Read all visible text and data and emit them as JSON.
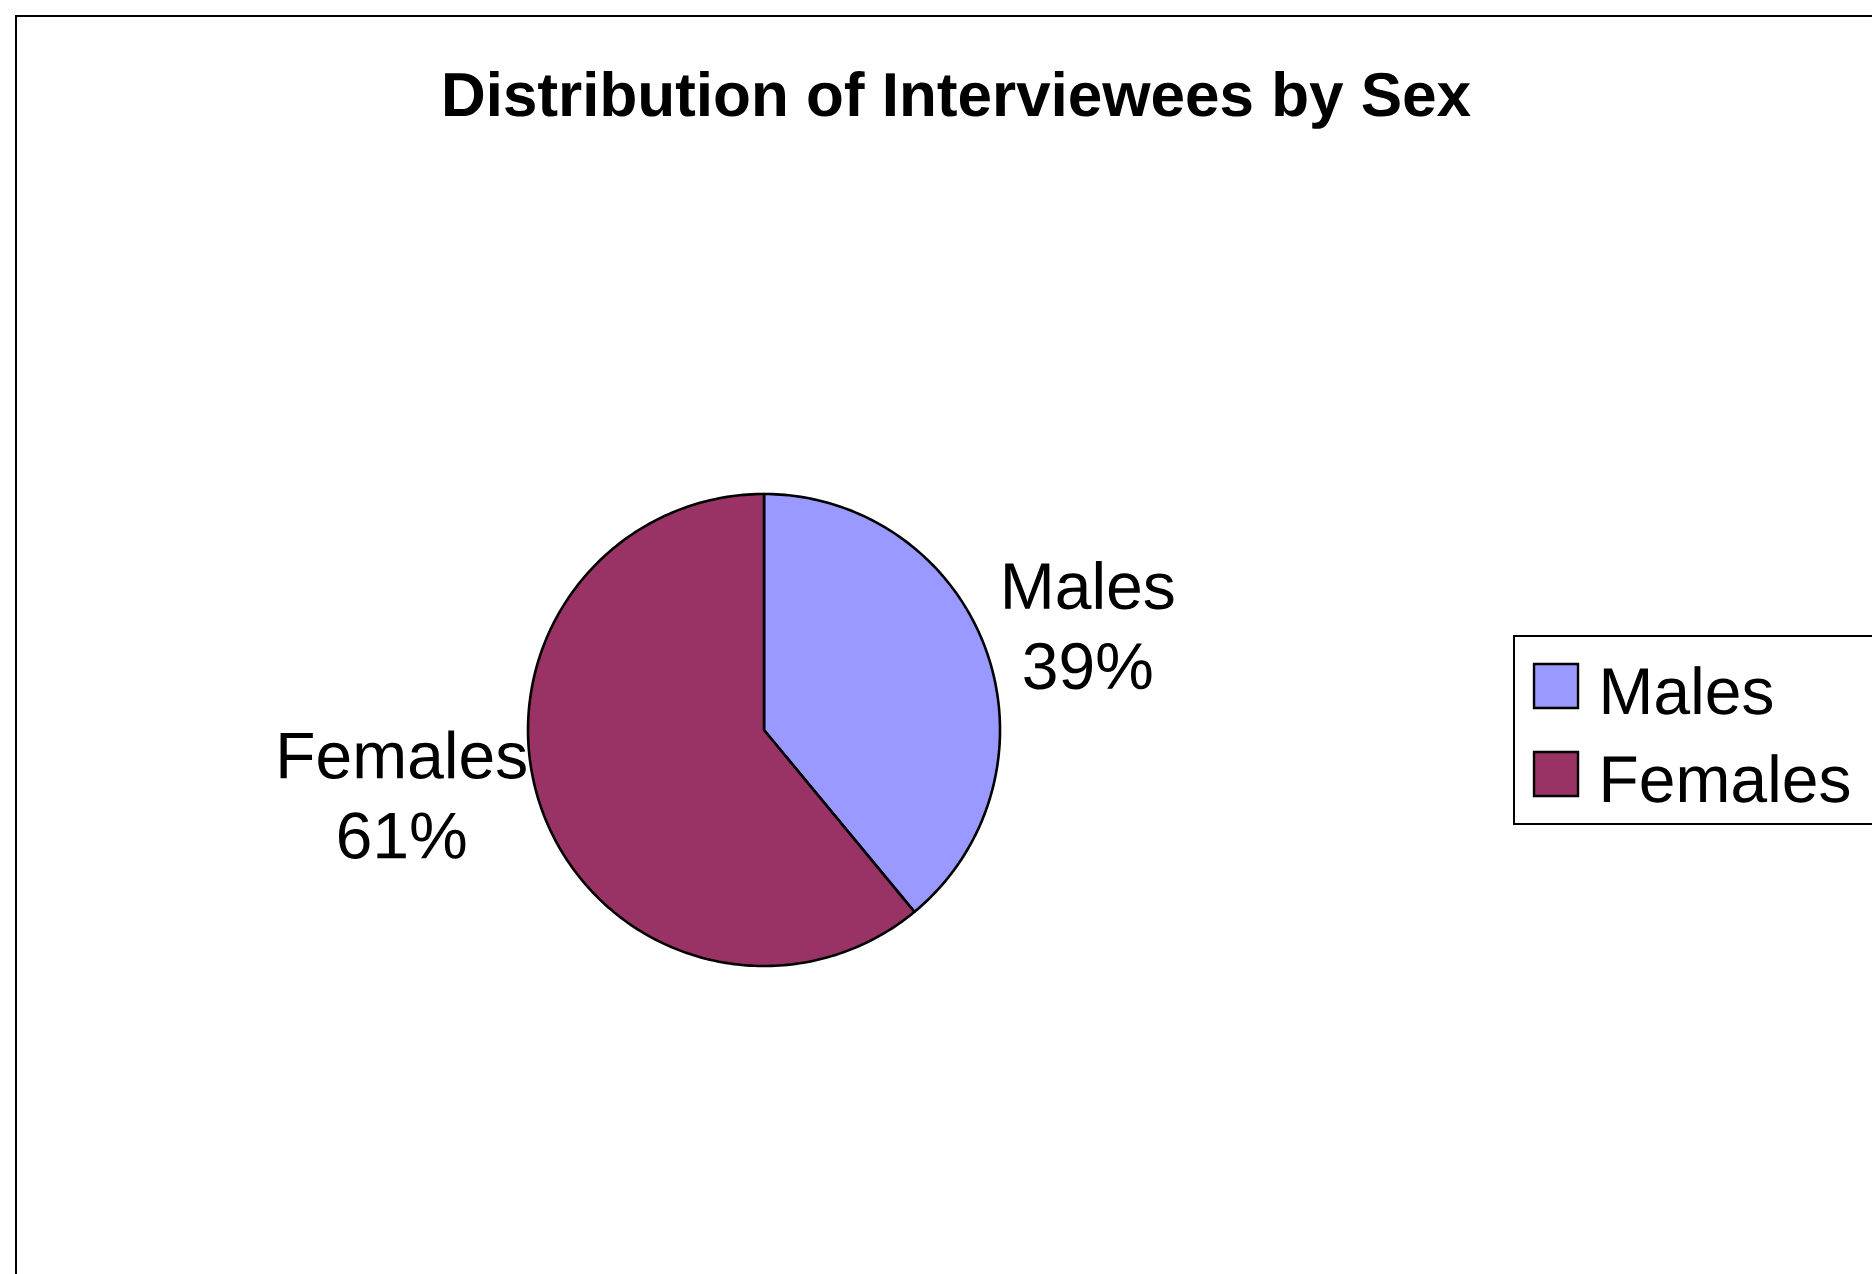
{
  "chart_data": {
    "type": "pie",
    "title": "Distribution of Interviewees by Sex",
    "categories": [
      "Males",
      "Females"
    ],
    "values": [
      39,
      61
    ],
    "value_labels": [
      "39%",
      "61%"
    ],
    "colors": [
      "#9999ff",
      "#993366"
    ],
    "legend": "right"
  }
}
